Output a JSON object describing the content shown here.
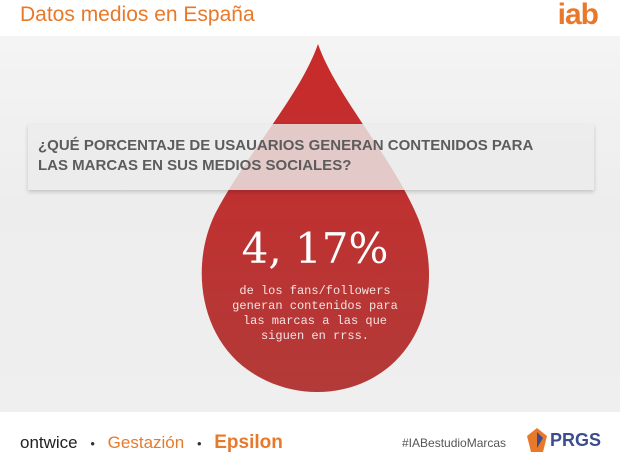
{
  "header": {
    "title": "Datos medios en España",
    "logo": "iab"
  },
  "question": {
    "line1": "¿QUÉ PORCENTAJE DE USAUARIOS GENERAN CONTENIDOS PARA",
    "line2": "LAS MARCAS EN SUS MEDIOS SOCIALES?"
  },
  "stat": {
    "value": "4, 17%",
    "caption": [
      "de los fans/followers",
      "generan contenidos para",
      "las marcas a las que",
      "siguen en rrss."
    ]
  },
  "footer": {
    "sponsors": [
      "ontwice",
      "Gestazión",
      "Epsilon"
    ],
    "separator": "•",
    "hashtag": "#IABestudioMarcas",
    "brand": "PRGS"
  },
  "colors": {
    "accent": "#e8792b",
    "drop": "#c8332f",
    "brand_blue": "#3b4c8f"
  },
  "icons": [
    "drop-shape",
    "prgs-logo-icon"
  ]
}
